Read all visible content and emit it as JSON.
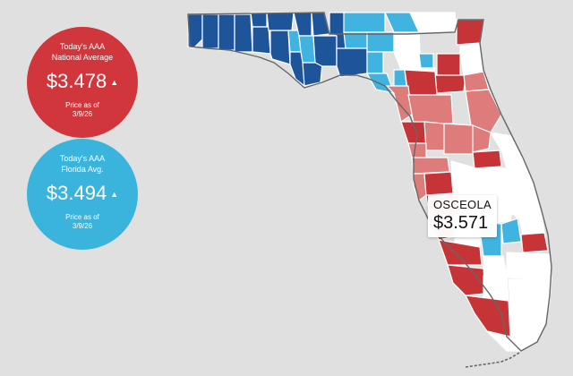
{
  "national_badge": {
    "caption_line1": "Today's AAA",
    "caption_line2": "National Average",
    "price": "$3.478",
    "trend_icon": "up-triangle-icon",
    "asof_line1": "Price as of",
    "asof_line2": "3/9/26",
    "color": "#d0363b"
  },
  "florida_badge": {
    "caption_line1": "Today's AAA",
    "caption_line2": "Florida Avg.",
    "price": "$3.494",
    "trend_icon": "up-triangle-icon",
    "asof_line1": "Price as of",
    "asof_line2": "3/9/26",
    "color": "#3ab4dc"
  },
  "tooltip": {
    "county": "OSCEOLA",
    "price": "$3.571"
  },
  "legend_colors": {
    "dark_blue": "#1e5499",
    "light_blue": "#41b3e0",
    "white": "#ffffff",
    "light_red": "#de7c7c",
    "dark_red": "#c73438"
  },
  "counties": [
    {
      "name": "Escambia",
      "level": "dark_blue"
    },
    {
      "name": "Santa Rosa",
      "level": "dark_blue"
    },
    {
      "name": "Okaloosa",
      "level": "dark_blue"
    },
    {
      "name": "Walton",
      "level": "dark_blue"
    },
    {
      "name": "Holmes",
      "level": "dark_blue"
    },
    {
      "name": "Washington",
      "level": "dark_blue"
    },
    {
      "name": "Bay",
      "level": "dark_blue"
    },
    {
      "name": "Jackson",
      "level": "dark_blue"
    },
    {
      "name": "Calhoun",
      "level": "light_blue"
    },
    {
      "name": "Gulf",
      "level": "dark_blue"
    },
    {
      "name": "Gadsden",
      "level": "dark_blue"
    },
    {
      "name": "Liberty",
      "level": "light_blue"
    },
    {
      "name": "Franklin",
      "level": "dark_blue"
    },
    {
      "name": "Leon",
      "level": "dark_blue"
    },
    {
      "name": "Wakulla",
      "level": "dark_blue"
    },
    {
      "name": "Jefferson",
      "level": "dark_blue"
    },
    {
      "name": "Madison",
      "level": "light_blue"
    },
    {
      "name": "Taylor",
      "level": "dark_blue"
    },
    {
      "name": "Hamilton",
      "level": "light_blue"
    },
    {
      "name": "Suwannee",
      "level": "light_blue"
    },
    {
      "name": "Lafayette",
      "level": "light_blue"
    },
    {
      "name": "Dixie",
      "level": "light_blue"
    },
    {
      "name": "Columbia",
      "level": "white"
    },
    {
      "name": "Baker",
      "level": "light_blue"
    },
    {
      "name": "Union",
      "level": "light_blue"
    },
    {
      "name": "Bradford",
      "level": "white"
    },
    {
      "name": "Nassau",
      "level": "white"
    },
    {
      "name": "Duval",
      "level": "dark_red"
    },
    {
      "name": "Clay",
      "level": "dark_red"
    },
    {
      "name": "St. Johns",
      "level": "white"
    },
    {
      "name": "Putnam",
      "level": "dark_red"
    },
    {
      "name": "Flagler",
      "level": "light_red"
    },
    {
      "name": "Gilchrist",
      "level": "light_blue"
    },
    {
      "name": "Alachua",
      "level": "dark_red"
    },
    {
      "name": "Levy",
      "level": "light_red"
    },
    {
      "name": "Marion",
      "level": "light_red"
    },
    {
      "name": "Volusia",
      "level": "light_red"
    },
    {
      "name": "Citrus",
      "level": "dark_red"
    },
    {
      "name": "Sumter",
      "level": "light_red"
    },
    {
      "name": "Lake",
      "level": "light_red"
    },
    {
      "name": "Seminole",
      "level": "light_red"
    },
    {
      "name": "Hernando",
      "level": "light_red"
    },
    {
      "name": "Pasco",
      "level": "light_red"
    },
    {
      "name": "Orange",
      "level": "dark_red"
    },
    {
      "name": "Brevard",
      "level": "white"
    },
    {
      "name": "Pinellas",
      "level": "light_red"
    },
    {
      "name": "Hillsborough",
      "level": "dark_red"
    },
    {
      "name": "Polk",
      "level": "white"
    },
    {
      "name": "Osceola",
      "level": "white"
    },
    {
      "name": "Manatee",
      "level": "dark_red"
    },
    {
      "name": "Hardee",
      "level": "white"
    },
    {
      "name": "Indian River",
      "level": "white"
    },
    {
      "name": "Sarasota",
      "level": "dark_red"
    },
    {
      "name": "DeSoto",
      "level": "white"
    },
    {
      "name": "Highlands",
      "level": "light_blue"
    },
    {
      "name": "Okeechobee",
      "level": "light_blue"
    },
    {
      "name": "St. Lucie",
      "level": "white"
    },
    {
      "name": "Charlotte",
      "level": "dark_red"
    },
    {
      "name": "Glades",
      "level": "white"
    },
    {
      "name": "Martin",
      "level": "dark_red"
    },
    {
      "name": "Lee",
      "level": "dark_red"
    },
    {
      "name": "Hendry",
      "level": "white"
    },
    {
      "name": "Palm Beach",
      "level": "white"
    },
    {
      "name": "Collier",
      "level": "dark_red"
    },
    {
      "name": "Broward",
      "level": "white"
    },
    {
      "name": "Miami-Dade",
      "level": "white"
    },
    {
      "name": "Monroe",
      "level": "white"
    }
  ]
}
